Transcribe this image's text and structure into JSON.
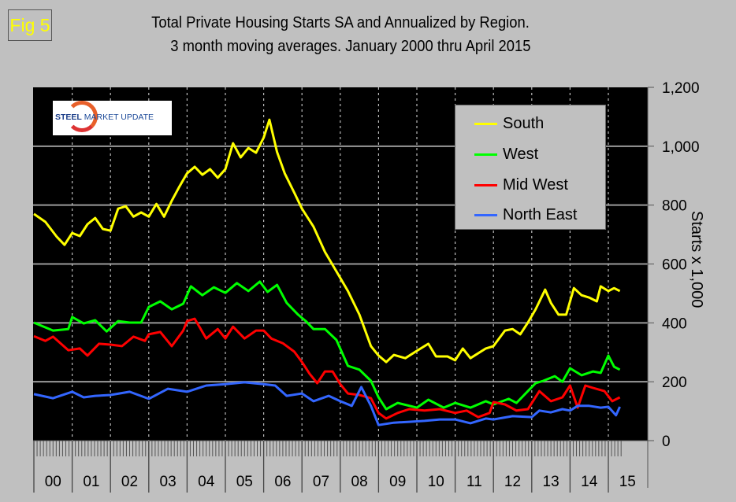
{
  "figure_label": "Fig 5",
  "logo_text_bold": "STEEL",
  "logo_text": " MARKET UPDATE",
  "chart_data": {
    "type": "line",
    "title": "Total Private Housing Starts SA and Annualized by Region.",
    "subtitle": "3 month moving averages. January 2000 thru April 2015",
    "xlabel": "",
    "ylabel": "Starts x 1,000",
    "ylim": [
      0,
      1200
    ],
    "xlim": [
      2000,
      2015.33
    ],
    "y_ticks": [
      "0",
      "200",
      "400",
      "600",
      "800",
      "1,000",
      "1,200"
    ],
    "y_tick_values": [
      0,
      200,
      400,
      600,
      800,
      1000,
      1200
    ],
    "x_tick_labels": [
      "00",
      "01",
      "02",
      "03",
      "04",
      "05",
      "06",
      "07",
      "08",
      "09",
      "10",
      "11",
      "12",
      "13",
      "14",
      "15"
    ],
    "grid": true,
    "legend_position": "top-right",
    "series": [
      {
        "name": "South",
        "color": "#ffff00",
        "points": [
          [
            2000.0,
            770
          ],
          [
            2000.3,
            743
          ],
          [
            2000.6,
            692
          ],
          [
            2000.8,
            665
          ],
          [
            2001.0,
            705
          ],
          [
            2001.2,
            695
          ],
          [
            2001.4,
            735
          ],
          [
            2001.6,
            756
          ],
          [
            2001.8,
            719
          ],
          [
            2002.0,
            713
          ],
          [
            2002.2,
            788
          ],
          [
            2002.4,
            796
          ],
          [
            2002.6,
            761
          ],
          [
            2002.8,
            775
          ],
          [
            2003.0,
            761
          ],
          [
            2003.2,
            804
          ],
          [
            2003.4,
            761
          ],
          [
            2003.6,
            815
          ],
          [
            2003.8,
            863
          ],
          [
            2004.0,
            908
          ],
          [
            2004.2,
            930
          ],
          [
            2004.4,
            903
          ],
          [
            2004.6,
            922
          ],
          [
            2004.8,
            893
          ],
          [
            2005.0,
            922
          ],
          [
            2005.2,
            1010
          ],
          [
            2005.4,
            962
          ],
          [
            2005.6,
            994
          ],
          [
            2005.8,
            978
          ],
          [
            2006.0,
            1029
          ],
          [
            2006.15,
            1090
          ],
          [
            2006.35,
            980
          ],
          [
            2006.55,
            908
          ],
          [
            2006.8,
            842
          ],
          [
            2007.0,
            788
          ],
          [
            2007.3,
            727
          ],
          [
            2007.6,
            641
          ],
          [
            2007.9,
            575
          ],
          [
            2008.2,
            508
          ],
          [
            2008.5,
            428
          ],
          [
            2008.8,
            321
          ],
          [
            2009.0,
            289
          ],
          [
            2009.2,
            267
          ],
          [
            2009.4,
            291
          ],
          [
            2009.7,
            280
          ],
          [
            2010.0,
            305
          ],
          [
            2010.3,
            329
          ],
          [
            2010.5,
            286
          ],
          [
            2010.8,
            286
          ],
          [
            2011.0,
            273
          ],
          [
            2011.2,
            313
          ],
          [
            2011.4,
            280
          ],
          [
            2011.8,
            313
          ],
          [
            2012.0,
            321
          ],
          [
            2012.3,
            374
          ],
          [
            2012.5,
            379
          ],
          [
            2012.7,
            361
          ],
          [
            2012.9,
            401
          ],
          [
            2013.1,
            446
          ],
          [
            2013.35,
            513
          ],
          [
            2013.5,
            468
          ],
          [
            2013.7,
            428
          ],
          [
            2013.9,
            428
          ],
          [
            2014.1,
            518
          ],
          [
            2014.3,
            494
          ],
          [
            2014.5,
            486
          ],
          [
            2014.7,
            473
          ],
          [
            2014.8,
            524
          ],
          [
            2015.0,
            508
          ],
          [
            2015.15,
            518
          ],
          [
            2015.3,
            508
          ]
        ]
      },
      {
        "name": "West",
        "color": "#00ff00",
        "points": [
          [
            2000.0,
            401
          ],
          [
            2000.5,
            374
          ],
          [
            2000.9,
            379
          ],
          [
            2001.0,
            420
          ],
          [
            2001.3,
            398
          ],
          [
            2001.6,
            409
          ],
          [
            2001.9,
            371
          ],
          [
            2002.2,
            406
          ],
          [
            2002.5,
            401
          ],
          [
            2002.8,
            401
          ],
          [
            2003.0,
            454
          ],
          [
            2003.3,
            473
          ],
          [
            2003.6,
            446
          ],
          [
            2003.9,
            465
          ],
          [
            2004.1,
            524
          ],
          [
            2004.4,
            494
          ],
          [
            2004.7,
            521
          ],
          [
            2005.0,
            502
          ],
          [
            2005.3,
            535
          ],
          [
            2005.6,
            508
          ],
          [
            2005.9,
            540
          ],
          [
            2006.1,
            505
          ],
          [
            2006.35,
            529
          ],
          [
            2006.6,
            468
          ],
          [
            2006.9,
            428
          ],
          [
            2007.1,
            406
          ],
          [
            2007.3,
            379
          ],
          [
            2007.6,
            379
          ],
          [
            2007.9,
            342
          ],
          [
            2008.2,
            254
          ],
          [
            2008.5,
            241
          ],
          [
            2008.8,
            203
          ],
          [
            2009.0,
            147
          ],
          [
            2009.2,
            107
          ],
          [
            2009.5,
            128
          ],
          [
            2010.0,
            112
          ],
          [
            2010.3,
            139
          ],
          [
            2010.7,
            112
          ],
          [
            2011.0,
            128
          ],
          [
            2011.4,
            112
          ],
          [
            2011.8,
            134
          ],
          [
            2012.0,
            123
          ],
          [
            2012.4,
            142
          ],
          [
            2012.6,
            128
          ],
          [
            2012.9,
            168
          ],
          [
            2013.1,
            195
          ],
          [
            2013.3,
            203
          ],
          [
            2013.6,
            219
          ],
          [
            2013.8,
            200
          ],
          [
            2014.0,
            246
          ],
          [
            2014.3,
            222
          ],
          [
            2014.6,
            235
          ],
          [
            2014.8,
            230
          ],
          [
            2015.0,
            289
          ],
          [
            2015.15,
            251
          ],
          [
            2015.3,
            241
          ]
        ]
      },
      {
        "name": "Mid West",
        "color": "#ff0000",
        "points": [
          [
            2000.0,
            355
          ],
          [
            2000.3,
            339
          ],
          [
            2000.5,
            353
          ],
          [
            2000.9,
            307
          ],
          [
            2001.2,
            313
          ],
          [
            2001.4,
            289
          ],
          [
            2001.7,
            329
          ],
          [
            2002.0,
            326
          ],
          [
            2002.3,
            321
          ],
          [
            2002.6,
            353
          ],
          [
            2002.9,
            339
          ],
          [
            2003.0,
            361
          ],
          [
            2003.3,
            369
          ],
          [
            2003.6,
            321
          ],
          [
            2003.9,
            374
          ],
          [
            2004.0,
            406
          ],
          [
            2004.2,
            414
          ],
          [
            2004.5,
            347
          ],
          [
            2004.8,
            379
          ],
          [
            2005.0,
            347
          ],
          [
            2005.2,
            387
          ],
          [
            2005.5,
            347
          ],
          [
            2005.8,
            374
          ],
          [
            2006.0,
            374
          ],
          [
            2006.2,
            347
          ],
          [
            2006.5,
            331
          ],
          [
            2006.8,
            302
          ],
          [
            2007.0,
            267
          ],
          [
            2007.2,
            227
          ],
          [
            2007.4,
            195
          ],
          [
            2007.6,
            235
          ],
          [
            2007.8,
            235
          ],
          [
            2008.0,
            192
          ],
          [
            2008.2,
            160
          ],
          [
            2008.5,
            155
          ],
          [
            2008.8,
            144
          ],
          [
            2009.0,
            94
          ],
          [
            2009.2,
            75
          ],
          [
            2009.5,
            94
          ],
          [
            2009.8,
            107
          ],
          [
            2010.2,
            102
          ],
          [
            2010.6,
            107
          ],
          [
            2011.0,
            94
          ],
          [
            2011.3,
            102
          ],
          [
            2011.6,
            80
          ],
          [
            2011.9,
            94
          ],
          [
            2012.0,
            131
          ],
          [
            2012.3,
            123
          ],
          [
            2012.6,
            102
          ],
          [
            2012.9,
            107
          ],
          [
            2013.2,
            168
          ],
          [
            2013.5,
            134
          ],
          [
            2013.8,
            147
          ],
          [
            2014.0,
            187
          ],
          [
            2014.2,
            112
          ],
          [
            2014.4,
            187
          ],
          [
            2014.6,
            179
          ],
          [
            2014.9,
            168
          ],
          [
            2015.1,
            134
          ],
          [
            2015.3,
            147
          ]
        ]
      },
      {
        "name": "North East",
        "color": "#3366ff",
        "points": [
          [
            2000.0,
            158
          ],
          [
            2000.5,
            144
          ],
          [
            2001.0,
            166
          ],
          [
            2001.3,
            147
          ],
          [
            2001.6,
            152
          ],
          [
            2002.0,
            155
          ],
          [
            2002.5,
            166
          ],
          [
            2003.0,
            142
          ],
          [
            2003.5,
            176
          ],
          [
            2004.0,
            166
          ],
          [
            2004.5,
            187
          ],
          [
            2005.0,
            192
          ],
          [
            2005.5,
            198
          ],
          [
            2006.0,
            192
          ],
          [
            2006.3,
            187
          ],
          [
            2006.6,
            152
          ],
          [
            2007.0,
            160
          ],
          [
            2007.3,
            134
          ],
          [
            2007.7,
            152
          ],
          [
            2008.0,
            134
          ],
          [
            2008.3,
            118
          ],
          [
            2008.55,
            182
          ],
          [
            2008.8,
            118
          ],
          [
            2009.0,
            53
          ],
          [
            2009.4,
            61
          ],
          [
            2009.8,
            64
          ],
          [
            2010.2,
            67
          ],
          [
            2010.6,
            72
          ],
          [
            2011.0,
            72
          ],
          [
            2011.4,
            59
          ],
          [
            2011.8,
            75
          ],
          [
            2012.0,
            72
          ],
          [
            2012.5,
            83
          ],
          [
            2013.0,
            80
          ],
          [
            2013.2,
            102
          ],
          [
            2013.5,
            96
          ],
          [
            2013.8,
            107
          ],
          [
            2014.0,
            102
          ],
          [
            2014.2,
            118
          ],
          [
            2014.5,
            118
          ],
          [
            2014.8,
            112
          ],
          [
            2015.0,
            115
          ],
          [
            2015.2,
            86
          ],
          [
            2015.3,
            115
          ]
        ]
      }
    ]
  }
}
